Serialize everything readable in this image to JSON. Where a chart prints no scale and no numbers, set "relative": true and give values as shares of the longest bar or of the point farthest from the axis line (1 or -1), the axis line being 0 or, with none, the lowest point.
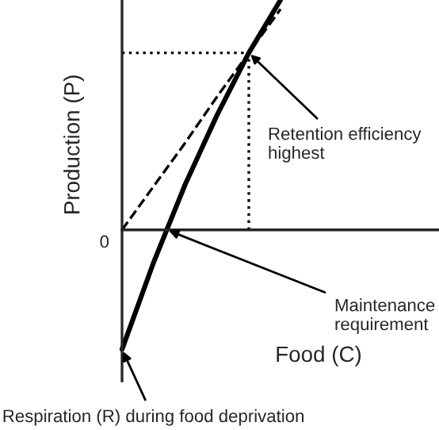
{
  "chart_data": {
    "type": "line",
    "relative": true,
    "xlabel": "Food (C)",
    "ylabel": "Production (P)",
    "grid": false,
    "legend": false,
    "marker": "none",
    "categories": [
      null,
      null,
      null,
      null,
      null,
      null,
      null,
      null,
      null,
      null,
      null
    ],
    "series": [
      {
        "color": "#000000",
        "line_style": "solid",
        "values": [
          -0.52,
          -0.14,
          0.2,
          0.5,
          0.77,
          1.0,
          null,
          null,
          null,
          null,
          null
        ]
      },
      {
        "color": "#000000",
        "line_style": "dashed",
        "values": [
          0,
          0.19,
          0.38,
          0.58,
          0.77,
          0.96,
          null,
          null,
          null,
          null,
          null
        ]
      },
      {
        "color": "#000000",
        "line_style": "dotted",
        "values": [
          0.77,
          0.77,
          0.77,
          0.77,
          0.77,
          null,
          null,
          null,
          null,
          null,
          null
        ]
      }
    ],
    "annotations": [
      "Retention efficiency highest",
      "Maintenance requirement",
      "Respiration (R) during food deprivation",
      "0"
    ]
  }
}
